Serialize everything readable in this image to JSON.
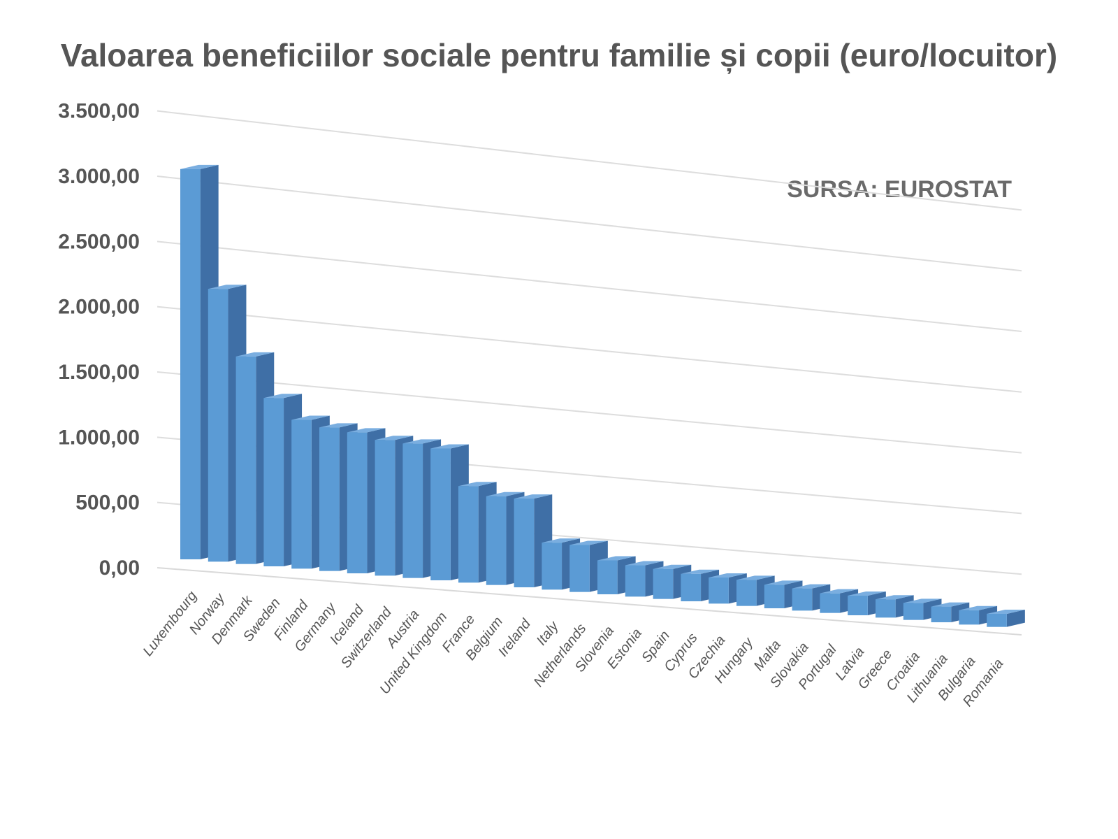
{
  "chart_data": {
    "type": "bar",
    "title": "Valoarea beneficiilor sociale pentru familie și copii (euro/locuitor)",
    "annotation": "SURSA: EUROSTAT",
    "xlabel": "",
    "ylabel": "",
    "ylim": [
      0,
      3500
    ],
    "yticks": [
      "0,00",
      "500,00",
      "1.000,00",
      "1.500,00",
      "2.000,00",
      "2.500,00",
      "3.000,00",
      "3.500,00"
    ],
    "grid": true,
    "legend": "none",
    "categories": [
      "Luxembourg",
      "Norway",
      "Denmark",
      "Sweden",
      "Finland",
      "Germany",
      "Iceland",
      "Switzerland",
      "Austria",
      "United Kingdom",
      "France",
      "Belgium",
      "Ireland",
      "Italy",
      "Netherlands",
      "Slovenia",
      "Estonia",
      "Spain",
      "Cyprus",
      "Czechia",
      "Hungary",
      "Malta",
      "Slovakia",
      "Portugal",
      "Latvia",
      "Greece",
      "Croatia",
      "Lithuania",
      "Bulgaria",
      "Romania"
    ],
    "values": [
      2990,
      2090,
      1590,
      1290,
      1140,
      1100,
      1080,
      1040,
      1030,
      1010,
      740,
      680,
      680,
      360,
      360,
      260,
      240,
      230,
      210,
      200,
      200,
      180,
      170,
      150,
      150,
      140,
      130,
      120,
      110,
      100
    ]
  },
  "colors": {
    "bar_front": "#5b9bd5",
    "bar_side": "#3f6fa6",
    "bar_top": "#7aaee0"
  }
}
